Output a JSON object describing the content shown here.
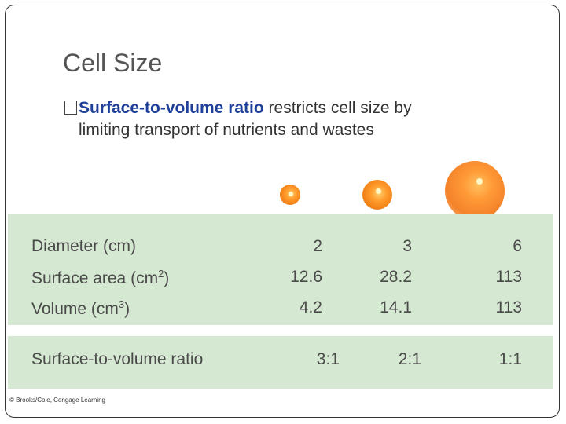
{
  "slide": {
    "title": "Cell Size",
    "bullet": {
      "marker": "",
      "term": "Surface-to-volume ratio",
      "text_line1": " restricts cell size by",
      "text_line2": "limiting transport of nutrients and wastes"
    }
  },
  "table": {
    "rows": [
      {
        "label": "Diameter (cm)",
        "label_sup": "",
        "label_suffix": "",
        "values": [
          "2",
          "3",
          "6"
        ]
      },
      {
        "label": "Surface area (cm",
        "label_sup": "2",
        "label_suffix": ")",
        "values": [
          "12.6",
          "28.2",
          "113"
        ]
      },
      {
        "label": "Volume (cm",
        "label_sup": "3",
        "label_suffix": ")",
        "values": [
          "4.2",
          "14.1",
          "113"
        ]
      }
    ],
    "ratio_row": {
      "label": "Surface-to-volume ratio",
      "values": [
        "3:1",
        "2:1",
        "1:1"
      ]
    }
  },
  "credit": "© Brooks/Cole, Cengage Learning",
  "colors": {
    "accent": "#1e3f9a",
    "panel": "#d5e8d1",
    "sphere": "#f4822a"
  }
}
